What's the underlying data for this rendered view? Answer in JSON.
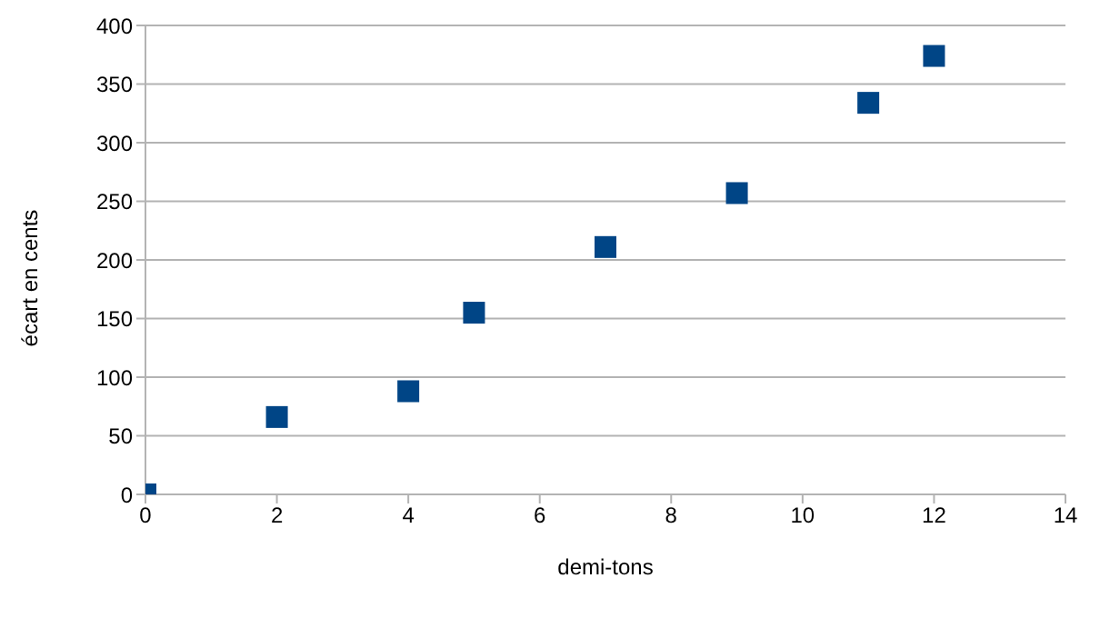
{
  "chart_data": {
    "type": "scatter",
    "xlabel": "demi-tons",
    "ylabel": "écart en cents",
    "x": [
      0,
      2,
      4,
      5,
      7,
      9,
      11,
      12
    ],
    "series": [
      {
        "color": "#004586",
        "values": [
          0,
          66,
          88,
          155,
          211,
          257,
          334,
          374
        ]
      }
    ],
    "xlim": [
      0,
      14
    ],
    "xticks": [
      0,
      2,
      4,
      6,
      8,
      10,
      12,
      14
    ],
    "ylim": [
      0,
      400
    ],
    "yticks": [
      0,
      50,
      100,
      150,
      200,
      250,
      300,
      350,
      400
    ],
    "grid": "y",
    "marker": "square",
    "legend": false
  }
}
